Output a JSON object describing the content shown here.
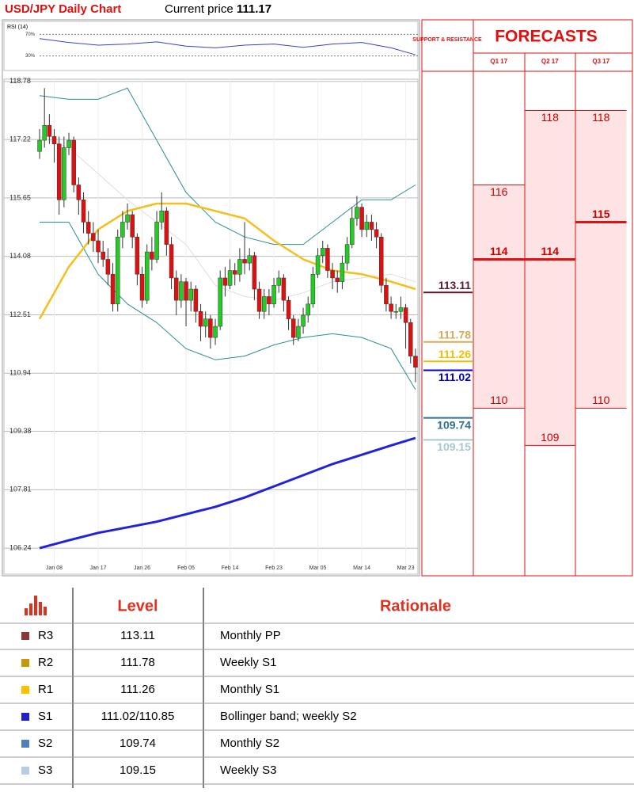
{
  "chart_data": {
    "type": "candlestick",
    "title": "USD/JPY Daily Chart",
    "price_label": "Current price",
    "price": 111.17,
    "up_color": "#22cc22",
    "down_color": "#e01010",
    "grid": true,
    "x": [
      0,
      1,
      2,
      3,
      4,
      5,
      6,
      7,
      8,
      9,
      10,
      11,
      12,
      13,
      14,
      15,
      16,
      17,
      18,
      19,
      20,
      21,
      22,
      23,
      24,
      25,
      26,
      27,
      28,
      29,
      30,
      31,
      32,
      33,
      34,
      35,
      36,
      37,
      38,
      39,
      40,
      41,
      42,
      43,
      44,
      45,
      46,
      47,
      48,
      49,
      50,
      51,
      52,
      53,
      54,
      55,
      56,
      57,
      58,
      59,
      60,
      61,
      62,
      63,
      64,
      65,
      66,
      67,
      68,
      69,
      70,
      71,
      72,
      73,
      74,
      75,
      76,
      77
    ],
    "open": [
      116.9,
      117.2,
      117.6,
      117.3,
      117.1,
      115.6,
      117.0,
      117.2,
      116.0,
      115.6,
      115.0,
      114.7,
      114.5,
      114.2,
      114.0,
      113.6,
      112.8,
      114.6,
      115.0,
      115.2,
      114.6,
      113.6,
      112.9,
      114.2,
      114.0,
      115.0,
      115.3,
      114.4,
      113.5,
      112.9,
      113.4,
      112.9,
      113.2,
      112.6,
      112.2,
      112.4,
      111.9,
      112.2,
      113.5,
      113.3,
      113.7,
      113.6,
      114.0,
      113.9,
      114.1,
      113.2,
      112.6,
      113.0,
      112.8,
      113.3,
      113.5,
      112.9,
      112.4,
      111.9,
      112.2,
      112.5,
      112.8,
      113.6,
      114.1,
      114.3,
      113.7,
      113.5,
      113.4,
      113.9,
      114.4,
      115.1,
      115.4,
      114.8,
      115.0,
      114.8,
      114.6,
      113.3,
      112.8,
      112.6,
      112.6,
      112.7,
      112.3,
      111.4
    ],
    "high": [
      117.5,
      118.6,
      117.9,
      117.5,
      117.3,
      117.3,
      117.4,
      117.3,
      116.2,
      115.8,
      115.3,
      115.0,
      114.8,
      114.5,
      114.3,
      113.9,
      114.8,
      115.3,
      115.5,
      115.3,
      114.7,
      113.8,
      114.4,
      114.6,
      115.3,
      115.8,
      115.4,
      114.6,
      113.7,
      113.6,
      113.5,
      113.4,
      113.3,
      112.8,
      112.6,
      112.5,
      112.4,
      113.7,
      113.8,
      114.0,
      113.9,
      114.3,
      115.0,
      114.3,
      114.2,
      113.4,
      113.2,
      113.2,
      113.5,
      113.7,
      113.6,
      113.0,
      112.5,
      112.4,
      112.7,
      113.0,
      113.8,
      114.3,
      114.5,
      114.4,
      113.9,
      113.7,
      114.1,
      114.6,
      115.4,
      115.7,
      115.5,
      115.2,
      115.2,
      115.0,
      114.7,
      113.5,
      113.0,
      112.8,
      113.0,
      112.8,
      112.4,
      111.6
    ],
    "low": [
      116.7,
      117.0,
      117.1,
      116.6,
      115.2,
      115.4,
      116.8,
      115.8,
      115.2,
      114.7,
      114.4,
      114.2,
      113.9,
      113.8,
      113.3,
      112.6,
      112.6,
      114.3,
      114.8,
      114.3,
      113.3,
      112.7,
      112.8,
      113.7,
      113.9,
      114.8,
      114.1,
      113.2,
      112.5,
      112.7,
      112.2,
      112.6,
      112.3,
      111.8,
      111.9,
      111.6,
      111.7,
      112.1,
      113.0,
      113.2,
      113.3,
      113.4,
      113.6,
      113.7,
      112.9,
      112.4,
      112.4,
      112.5,
      112.7,
      113.1,
      112.6,
      112.1,
      111.7,
      111.8,
      112.0,
      112.3,
      112.7,
      113.5,
      113.9,
      113.5,
      113.2,
      113.1,
      113.2,
      113.7,
      114.3,
      114.9,
      114.6,
      114.6,
      114.5,
      114.3,
      113.1,
      112.6,
      112.4,
      112.4,
      112.4,
      111.6,
      111.2,
      110.7
    ],
    "close": [
      117.2,
      117.6,
      117.3,
      117.1,
      115.6,
      117.0,
      117.2,
      116.0,
      115.6,
      115.0,
      114.7,
      114.5,
      114.2,
      114.0,
      113.6,
      112.8,
      114.6,
      115.0,
      115.2,
      114.6,
      113.6,
      112.9,
      114.2,
      114.0,
      115.0,
      115.3,
      114.4,
      113.5,
      112.9,
      113.4,
      112.9,
      113.2,
      112.6,
      112.2,
      112.4,
      111.9,
      112.2,
      113.5,
      113.3,
      113.7,
      113.6,
      114.0,
      113.9,
      114.1,
      113.2,
      112.6,
      113.0,
      112.8,
      113.3,
      113.5,
      112.9,
      112.4,
      111.9,
      112.2,
      112.5,
      112.8,
      113.6,
      114.1,
      114.3,
      113.7,
      113.5,
      113.4,
      113.9,
      114.4,
      115.1,
      115.4,
      114.8,
      115.0,
      114.8,
      114.6,
      113.3,
      112.8,
      112.6,
      112.6,
      112.7,
      112.3,
      111.4,
      111.1
    ],
    "lines": [
      {
        "color": "#2a8f8f",
        "x": [
          0,
          6,
          12,
          18,
          24,
          30,
          36,
          42,
          48,
          54,
          60,
          66,
          72,
          77
        ],
        "values": [
          118.4,
          118.3,
          118.3,
          118.6,
          117.2,
          115.8,
          115.0,
          114.6,
          114.4,
          114.4,
          115.0,
          115.6,
          115.6,
          116.0
        ]
      },
      {
        "color": "#2a8f8f",
        "x": [
          0,
          6,
          12,
          18,
          24,
          30,
          36,
          42,
          48,
          54,
          60,
          66,
          72,
          77
        ],
        "values": [
          115.0,
          115.0,
          113.6,
          112.8,
          112.3,
          111.6,
          111.3,
          111.4,
          111.7,
          111.9,
          112.0,
          111.9,
          111.6,
          110.5
        ]
      },
      {
        "color": "#dddddd",
        "x": [
          0,
          6,
          12,
          18,
          24,
          30,
          36,
          42,
          48,
          54,
          60,
          66,
          72,
          77
        ],
        "values": [
          117.3,
          117.0,
          116.3,
          115.6,
          115.0,
          114.4,
          113.3,
          113.0,
          112.9,
          113.1,
          113.4,
          113.5,
          113.6,
          113.4
        ]
      },
      {
        "color": "#f5bf1a",
        "x": [
          0,
          6,
          12,
          18,
          24,
          30,
          36,
          42,
          48,
          54,
          60,
          66,
          72,
          77
        ],
        "values": [
          112.4,
          113.8,
          114.8,
          115.3,
          115.5,
          115.5,
          115.3,
          115.1,
          114.5,
          114.0,
          113.7,
          113.6,
          113.4,
          113.2
        ]
      },
      {
        "color": "#2222dd",
        "x": [
          0,
          6,
          12,
          18,
          24,
          30,
          36,
          42,
          48,
          54,
          60,
          66,
          72,
          77
        ],
        "values": [
          106.24,
          106.45,
          106.65,
          106.8,
          106.95,
          107.15,
          107.35,
          107.6,
          107.9,
          108.2,
          108.5,
          108.75,
          109.0,
          109.2
        ]
      }
    ],
    "xlim": [
      -7.3,
      77.5
    ],
    "ylim": [
      105.54,
      118.84
    ],
    "xticks": [
      {
        "value": 3,
        "label": "Jan 08"
      },
      {
        "value": 12,
        "label": "Jan 17"
      },
      {
        "value": 21,
        "label": "Jan 26"
      },
      {
        "value": 30,
        "label": "Feb 05"
      },
      {
        "value": 39,
        "label": "Feb 14"
      },
      {
        "value": 48,
        "label": "Feb 23"
      },
      {
        "value": 57,
        "label": "Mar 05"
      },
      {
        "value": 66,
        "label": "Mar 14"
      },
      {
        "value": 75,
        "label": "Mar 23"
      }
    ],
    "yticks": [
      106.24,
      107.81,
      109.38,
      110.94,
      112.51,
      114.08,
      115.65,
      117.22,
      118.78
    ],
    "rsi": {
      "title": "RSI (14)",
      "color": "#3344cc",
      "x": [
        0,
        6,
        12,
        18,
        24,
        30,
        36,
        42,
        48,
        54,
        60,
        66,
        72,
        77
      ],
      "values": [
        62,
        55,
        50,
        52,
        56,
        48,
        45,
        50,
        52,
        46,
        52,
        55,
        45,
        32
      ],
      "ylim": [
        3,
        94
      ],
      "yticks": [
        {
          "value": 70,
          "label": "70%"
        },
        {
          "value": 30,
          "label": "30%"
        }
      ]
    },
    "levels_title": "SUPPORT & RESISTANCE",
    "levels": [
      {
        "value": 113.11,
        "color": "#5e1a30",
        "pos": "above"
      },
      {
        "value": 111.78,
        "color": "#d6aa55",
        "pos": "above"
      },
      {
        "value": 111.26,
        "color": "#f5bf00",
        "pos": "above"
      },
      {
        "value": 111.02,
        "color": "#0000bb",
        "pos": "below"
      },
      {
        "value": 109.74,
        "color": "#2f6f8f",
        "pos": "below"
      },
      {
        "value": 109.15,
        "color": "#a6c9cf",
        "pos": "below"
      }
    ],
    "forecasts_title": "FORECASTS",
    "forecasts": [
      {
        "quarter": "Q1 17",
        "high": 116,
        "mid": 114,
        "low": 110
      },
      {
        "quarter": "Q2 17",
        "high": 118,
        "mid": 114,
        "low": 109
      },
      {
        "quarter": "Q3 17",
        "high": 118,
        "mid": 115,
        "low": 110
      }
    ]
  },
  "table": {
    "header": [
      "Level",
      "Rationale"
    ],
    "rows": [
      {
        "name": "R3",
        "color": "#8b3a3a",
        "level": "113.11",
        "rationale": "Monthly PP"
      },
      {
        "name": "R2",
        "color": "#c8960a",
        "level": "111.78",
        "rationale": "Weekly S1"
      },
      {
        "name": "R1",
        "color": "#ffc000",
        "level": "111.26",
        "rationale": "Monthly S1"
      },
      {
        "name": "S1",
        "color": "#1f1fcc",
        "level": "111.02/110.85",
        "rationale": "Bollinger band; weekly S2"
      },
      {
        "name": "S2",
        "color": "#4f81bd",
        "level": "109.74",
        "rationale": "Monthly S2"
      },
      {
        "name": "S3",
        "color": "#b8cce4",
        "level": "109.15",
        "rationale": "Weekly S3"
      }
    ]
  }
}
